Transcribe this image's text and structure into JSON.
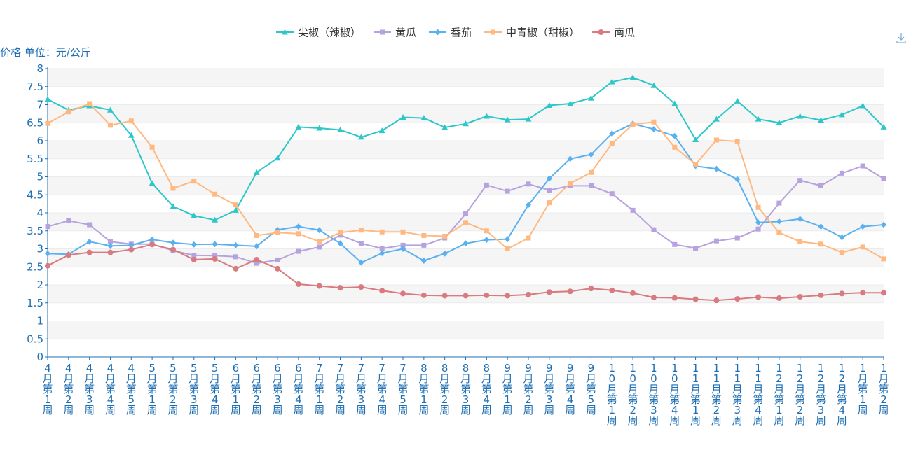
{
  "chart_data": {
    "type": "line",
    "ylabel": "价格 单位：元/公斤",
    "ylim": [
      0,
      8
    ],
    "yticks": [
      0,
      0.5,
      1,
      1.5,
      2,
      2.5,
      3,
      3.5,
      4,
      4.5,
      5,
      5.5,
      6,
      6.5,
      7,
      7.5,
      8
    ],
    "grid": "horizontal bands",
    "legend_position": "top-center",
    "categories": [
      "4月第1周",
      "4月第2周",
      "4月第3周",
      "4月第4周",
      "4月第5周",
      "5月第1周",
      "5月第2周",
      "5月第3周",
      "5月第4周",
      "6月第1周",
      "6月第2周",
      "6月第3周",
      "6月第4周",
      "7月第1周",
      "7月第2周",
      "7月第3周",
      "7月第4周",
      "7月第5周",
      "8月第1周",
      "8月第2周",
      "8月第3周",
      "8月第4周",
      "9月第1周",
      "9月第2周",
      "9月第3周",
      "9月第4周",
      "9月第5周",
      "10月第1周",
      "10月第2周",
      "10月第3周",
      "10月第4周",
      "11月第1周",
      "11月第2周",
      "11月第3周",
      "11月第4周",
      "12月第1周",
      "12月第2周",
      "12月第3周",
      "12月第4周",
      "1月第1周",
      "1月第2周"
    ],
    "series": [
      {
        "name": "尖椒（辣椒）",
        "color": "#2ec7c9",
        "marker": "triangle",
        "values": [
          7.15,
          6.85,
          6.97,
          6.85,
          6.15,
          4.82,
          4.18,
          3.92,
          3.8,
          4.07,
          5.12,
          5.52,
          6.38,
          6.35,
          6.3,
          6.1,
          6.28,
          6.65,
          6.63,
          6.37,
          6.47,
          6.68,
          6.58,
          6.6,
          6.98,
          7.03,
          7.18,
          7.63,
          7.75,
          7.53,
          7.03,
          6.03,
          6.6,
          7.1,
          6.6,
          6.5,
          6.68,
          6.57,
          6.72,
          6.97,
          6.38
        ]
      },
      {
        "name": "黄瓜",
        "color": "#b6a2de",
        "marker": "square",
        "values": [
          3.62,
          3.78,
          3.67,
          3.2,
          3.13,
          3.13,
          2.95,
          2.82,
          2.81,
          2.78,
          2.6,
          2.69,
          2.93,
          3.05,
          3.38,
          3.15,
          3.01,
          3.1,
          3.1,
          3.3,
          3.97,
          4.77,
          4.6,
          4.8,
          4.63,
          4.75,
          4.75,
          4.53,
          4.07,
          3.53,
          3.12,
          3.02,
          3.22,
          3.3,
          3.55,
          4.27,
          4.9,
          4.75,
          5.1,
          5.3,
          4.95
        ]
      },
      {
        "name": "番茄",
        "color": "#5ab1ef",
        "marker": "diamond",
        "values": [
          2.87,
          2.85,
          3.2,
          3.08,
          3.1,
          3.26,
          3.17,
          3.12,
          3.13,
          3.1,
          3.07,
          3.53,
          3.62,
          3.52,
          3.15,
          2.62,
          2.88,
          3.0,
          2.67,
          2.87,
          3.15,
          3.25,
          3.27,
          4.22,
          4.95,
          5.5,
          5.62,
          6.2,
          6.47,
          6.32,
          6.13,
          5.3,
          5.22,
          4.93,
          3.73,
          3.76,
          3.83,
          3.62,
          3.32,
          3.62,
          3.67
        ]
      },
      {
        "name": "中青椒（甜椒）",
        "color": "#ffb980",
        "marker": "square",
        "values": [
          6.48,
          6.8,
          7.03,
          6.43,
          6.55,
          5.82,
          4.68,
          4.88,
          4.52,
          4.22,
          3.37,
          3.45,
          3.42,
          3.2,
          3.45,
          3.52,
          3.47,
          3.47,
          3.37,
          3.35,
          3.73,
          3.5,
          3.0,
          3.3,
          4.28,
          4.82,
          5.12,
          5.92,
          6.45,
          6.52,
          5.82,
          5.35,
          6.02,
          5.98,
          4.15,
          3.45,
          3.2,
          3.13,
          2.9,
          3.05,
          2.72
        ]
      },
      {
        "name": "南瓜",
        "color": "#d87a80",
        "marker": "circle",
        "values": [
          2.53,
          2.83,
          2.9,
          2.9,
          2.98,
          3.12,
          2.98,
          2.7,
          2.72,
          2.45,
          2.7,
          2.45,
          2.02,
          1.97,
          1.92,
          1.94,
          1.84,
          1.76,
          1.71,
          1.7,
          1.7,
          1.71,
          1.7,
          1.73,
          1.8,
          1.82,
          1.9,
          1.85,
          1.77,
          1.65,
          1.64,
          1.6,
          1.57,
          1.61,
          1.66,
          1.63,
          1.67,
          1.71,
          1.76,
          1.78,
          1.78
        ]
      }
    ]
  },
  "toolbar": {
    "icon": "download-icon"
  }
}
